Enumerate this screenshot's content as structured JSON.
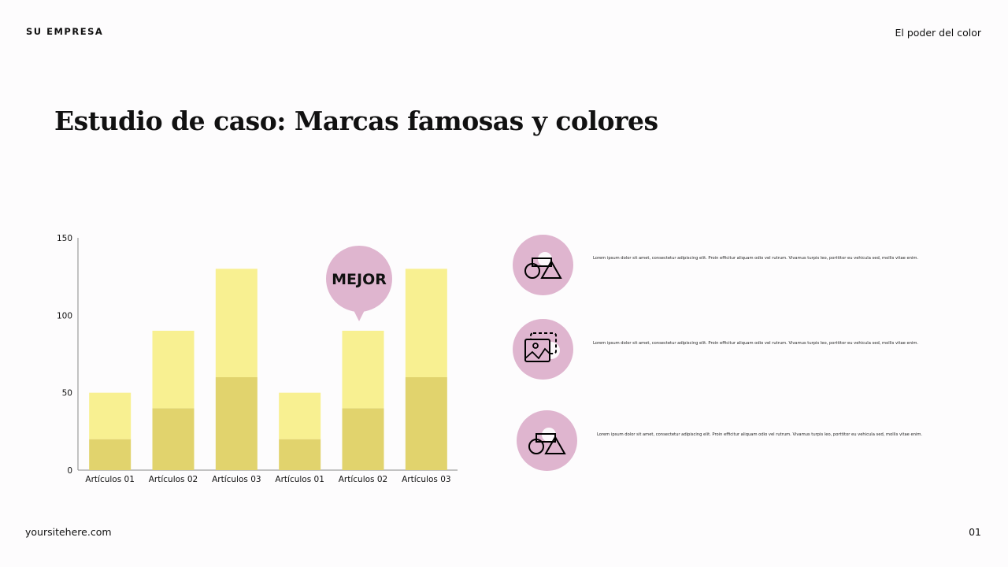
{
  "header": {
    "brand": "SU EMPRESA",
    "topic": "El poder del color"
  },
  "title": "Estudio de caso: Marcas famosas y colores",
  "footer": {
    "site": "yoursitehere.com",
    "page": "01"
  },
  "callout": {
    "label": "MEJOR",
    "color": "#dfb5cf",
    "category_index": 4
  },
  "chart_data": {
    "type": "bar",
    "stacked": true,
    "categories": [
      "Artículos 01",
      "Artículos 02",
      "Artículos 03",
      "Artículos 01",
      "Artículos 02",
      "Artículos 03"
    ],
    "series": [
      {
        "values": [
          20,
          40,
          60,
          20,
          40,
          60
        ],
        "color": "#e1d36d"
      },
      {
        "values": [
          30,
          50,
          70,
          30,
          50,
          70
        ],
        "color": "#f8f091"
      }
    ],
    "yticks": [
      0,
      50,
      100,
      150
    ],
    "ylim": [
      0,
      150
    ],
    "grid": false,
    "title": "",
    "xlabel": "",
    "ylabel": ""
  },
  "features": [
    {
      "icon": "shapes-icon",
      "text": "Lorem ipsum dolor sit amet, consectetur adipiscing elit. Proin efficitur aliquam odio vel rutrum. Vivamus turpis leo, porttitor eu vehicula sed, mollis vitae enim."
    },
    {
      "icon": "image-placeholder-icon",
      "text": "Lorem ipsum dolor sit amet, consectetur adipiscing elit. Proin efficitur aliquam odio vel rutrum. Vivamus turpis leo, porttitor eu vehicula sed, mollis vitae enim."
    },
    {
      "icon": "shapes-icon",
      "text": "Lorem ipsum dolor sit amet, consectetur adipiscing elit. Proin efficitur aliquam odio vel rutrum. Vivamus turpis leo, porttitor eu vehicula sed, mollis vitae enim."
    }
  ]
}
